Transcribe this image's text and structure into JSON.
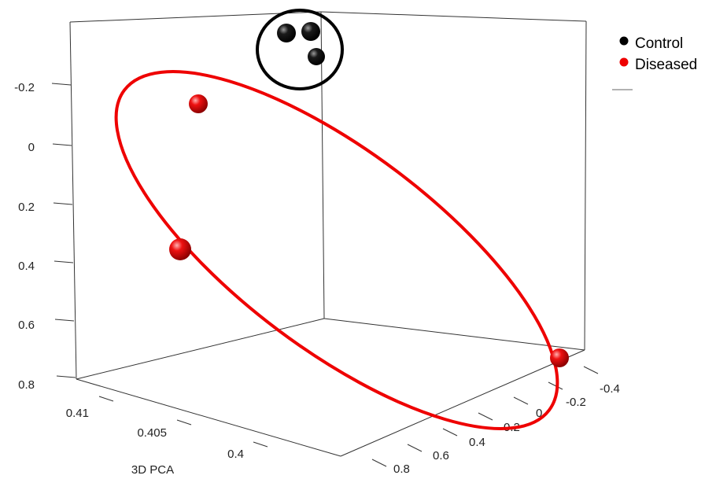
{
  "chart_data": {
    "type": "scatter",
    "projection": "3d",
    "title": "",
    "axis_label": "3D PCA",
    "axes": {
      "vertical": {
        "ticks": [
          "-0.2",
          "0",
          "0.2",
          "0.4",
          "0.6",
          "0.8"
        ],
        "range": [
          -0.3,
          0.8
        ],
        "direction": "increasing downward"
      },
      "left_depth": {
        "ticks": [
          "0.41",
          "0.405",
          "0.4"
        ],
        "range": [
          0.398,
          0.412
        ]
      },
      "right_depth": {
        "ticks": [
          "-0.4",
          "-0.2",
          "0",
          "0.2",
          "0.4",
          "0.6",
          "0.8"
        ],
        "range": [
          -0.45,
          0.9
        ]
      }
    },
    "series": [
      {
        "name": "Control",
        "color": "#000000",
        "points": [
          {
            "x": 0.4072,
            "y": -0.1,
            "z": -0.32
          },
          {
            "x": 0.4069,
            "y": -0.1,
            "z": -0.3
          },
          {
            "x": 0.4068,
            "y": -0.1,
            "z": -0.36
          }
        ]
      },
      {
        "name": "Diseased",
        "color": "#ee0000",
        "points": [
          {
            "x": 0.4085,
            "y": -0.1,
            "z": -0.12
          },
          {
            "x": 0.4083,
            "y": 0.3,
            "z": 0.25
          },
          {
            "x": 0.3995,
            "y": -0.1,
            "z": -0.25
          }
        ]
      }
    ],
    "legend": {
      "placement": "top-right",
      "entries": [
        "Control",
        "Diseased"
      ]
    },
    "annotations": [
      {
        "type": "ellipse",
        "encloses": "Control",
        "color": "#000000"
      },
      {
        "type": "ellipse",
        "encloses": "Diseased",
        "color": "#ee0000"
      }
    ],
    "grid": false
  }
}
